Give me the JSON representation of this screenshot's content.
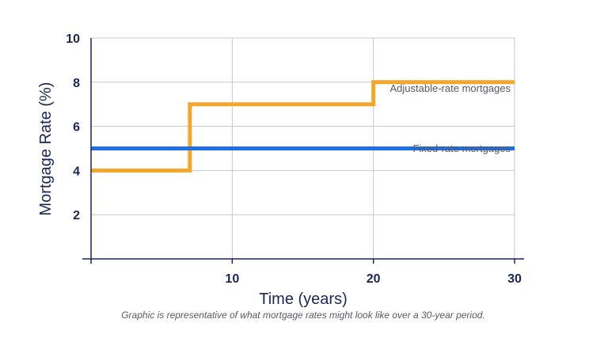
{
  "chart_data": {
    "type": "line",
    "xlabel": "Time (years)",
    "ylabel": "Mortgage Rate (%)",
    "xlim": [
      0,
      30
    ],
    "ylim": [
      0,
      10
    ],
    "x_ticks": [
      10,
      20,
      30
    ],
    "y_ticks": [
      2,
      4,
      6,
      8,
      10
    ],
    "grid": true,
    "series": [
      {
        "name": "Adjustable-rate mortgages",
        "color": "#F2A72B",
        "step": true,
        "points": [
          [
            0,
            4
          ],
          [
            7,
            4
          ],
          [
            7,
            7
          ],
          [
            20,
            7
          ],
          [
            20,
            8
          ],
          [
            30,
            8
          ]
        ]
      },
      {
        "name": "Fixed-rate mortgages",
        "color": "#1E6FE8",
        "step": false,
        "points": [
          [
            0,
            5
          ],
          [
            30,
            5
          ]
        ]
      }
    ],
    "caption": "Graphic is representative of what mortgage rates might look like over a 30-year period."
  },
  "colors": {
    "axis": "#1B2559",
    "grid": "#C4C7D0"
  }
}
